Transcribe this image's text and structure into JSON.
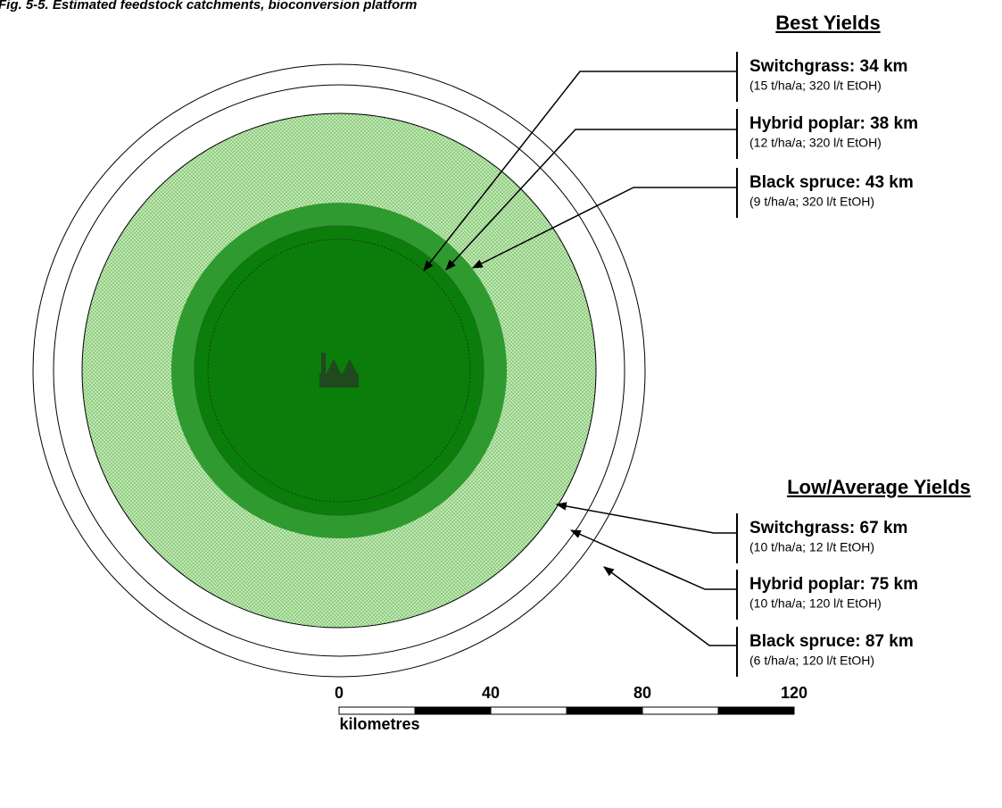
{
  "title": "Fig. 5-5. Estimated feedstock catchments, bioconversion platform",
  "best_yields": {
    "heading": "Best Yields",
    "items": [
      {
        "label": "Switchgrass: 34 km",
        "detail": "(15 t/ha/a; 320 l/t EtOH)"
      },
      {
        "label": "Hybrid poplar: 38 km",
        "detail": "(12 t/ha/a; 320 l/t EtOH)"
      },
      {
        "label": "Black spruce: 43 km",
        "detail": "(9 t/ha/a; 320 l/t EtOH)"
      }
    ]
  },
  "low_yields": {
    "heading": "Low/Average Yields",
    "items": [
      {
        "label": "Switchgrass: 67 km",
        "detail": "(10 t/ha/a; 12 l/t EtOH)"
      },
      {
        "label": "Hybrid poplar: 75 km",
        "detail": "(10 t/ha/a; 120 l/t EtOH)"
      },
      {
        "label": "Black spruce: 87 km",
        "detail": "(6 t/ha/a; 120 l/t EtOH)"
      }
    ]
  },
  "scale": {
    "ticks": [
      0,
      40,
      80,
      120
    ],
    "unit": "kilometres"
  }
}
